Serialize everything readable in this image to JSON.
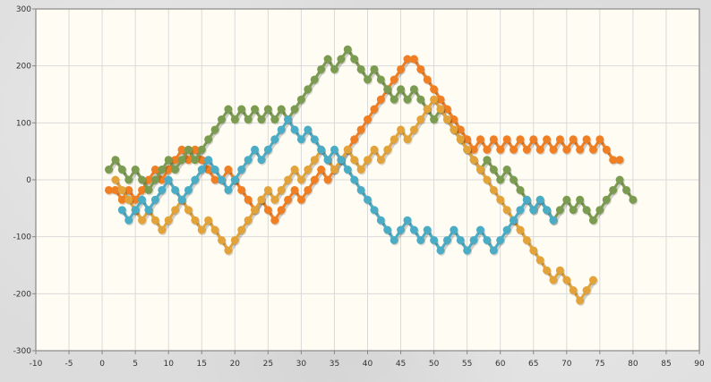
{
  "chart_data": {
    "type": "line",
    "xlim": [
      -10,
      90
    ],
    "ylim": [
      -300,
      300
    ],
    "x_ticks": [
      -10,
      -5,
      0,
      5,
      10,
      15,
      20,
      25,
      30,
      35,
      40,
      45,
      50,
      55,
      60,
      65,
      70,
      75,
      80,
      85,
      90
    ],
    "y_ticks": [
      -300,
      -200,
      -100,
      0,
      100,
      200,
      300
    ],
    "grid": true,
    "legend": "none",
    "colors": {
      "plot_background": "#fffdf3",
      "grid": "#d9d9d9",
      "axis": "#888888"
    },
    "series": [
      {
        "color": "#f07f23",
        "x_start": 1,
        "values": [
          -18,
          -18,
          -35,
          -18,
          -35,
          -18,
          0,
          18,
          0,
          18,
          35,
          53,
          35,
          53,
          35,
          18,
          0,
          0,
          18,
          0,
          -18,
          -35,
          -53,
          -35,
          -53,
          -71,
          -53,
          -35,
          -18,
          -35,
          -18,
          0,
          18,
          0,
          18,
          35,
          53,
          71,
          88,
          106,
          124,
          141,
          159,
          176,
          194,
          212,
          212,
          194,
          176,
          159,
          141,
          124,
          106,
          88,
          71,
          53,
          71,
          53,
          71,
          53,
          71,
          53,
          71,
          53,
          71,
          53,
          71,
          53,
          71,
          53,
          71,
          53,
          71,
          53,
          71,
          53,
          35,
          35
        ]
      },
      {
        "color": "#7b9c50",
        "x_start": 1,
        "values": [
          18,
          35,
          18,
          0,
          18,
          0,
          -18,
          0,
          18,
          35,
          18,
          35,
          53,
          35,
          53,
          71,
          88,
          106,
          124,
          106,
          124,
          106,
          124,
          106,
          124,
          106,
          124,
          106,
          124,
          141,
          159,
          176,
          194,
          212,
          194,
          212,
          229,
          212,
          194,
          176,
          194,
          176,
          159,
          141,
          159,
          141,
          159,
          141,
          124,
          106,
          124,
          106,
          88,
          71,
          53,
          35,
          18,
          35,
          18,
          0,
          18,
          0,
          -18,
          -35,
          -53,
          -35,
          -53,
          -71,
          -53,
          -35,
          -53,
          -35,
          -53,
          -71,
          -53,
          -35,
          -18,
          0,
          -18,
          -35
        ]
      },
      {
        "color": "#e3a33b",
        "x_start": 2,
        "values": [
          0,
          -18,
          -35,
          -53,
          -71,
          -53,
          -71,
          -88,
          -71,
          -53,
          -35,
          -53,
          -71,
          -88,
          -71,
          -88,
          -106,
          -124,
          -106,
          -88,
          -71,
          -53,
          -35,
          -18,
          -35,
          -18,
          0,
          18,
          0,
          18,
          35,
          53,
          35,
          18,
          35,
          53,
          35,
          18,
          35,
          53,
          35,
          53,
          71,
          88,
          71,
          88,
          106,
          124,
          141,
          124,
          106,
          88,
          71,
          53,
          35,
          18,
          0,
          -18,
          -35,
          -53,
          -71,
          -88,
          -106,
          -124,
          -141,
          -159,
          -176,
          -159,
          -176,
          -194,
          -212,
          -194,
          -176
        ]
      },
      {
        "color": "#4bacc6",
        "x_start": 3,
        "values": [
          -53,
          -71,
          -53,
          -35,
          -53,
          -35,
          -18,
          0,
          -18,
          -35,
          -18,
          0,
          18,
          35,
          18,
          0,
          -18,
          0,
          18,
          35,
          53,
          35,
          53,
          71,
          88,
          106,
          88,
          71,
          88,
          71,
          53,
          35,
          53,
          35,
          18,
          0,
          -18,
          -35,
          -53,
          -71,
          -88,
          -106,
          -88,
          -71,
          -88,
          -106,
          -88,
          -106,
          -124,
          -106,
          -88,
          -106,
          -124,
          -106,
          -88,
          -106,
          -124,
          -106,
          -88,
          -71,
          -53,
          -35,
          -53,
          -35,
          -53,
          -71
        ]
      }
    ]
  }
}
